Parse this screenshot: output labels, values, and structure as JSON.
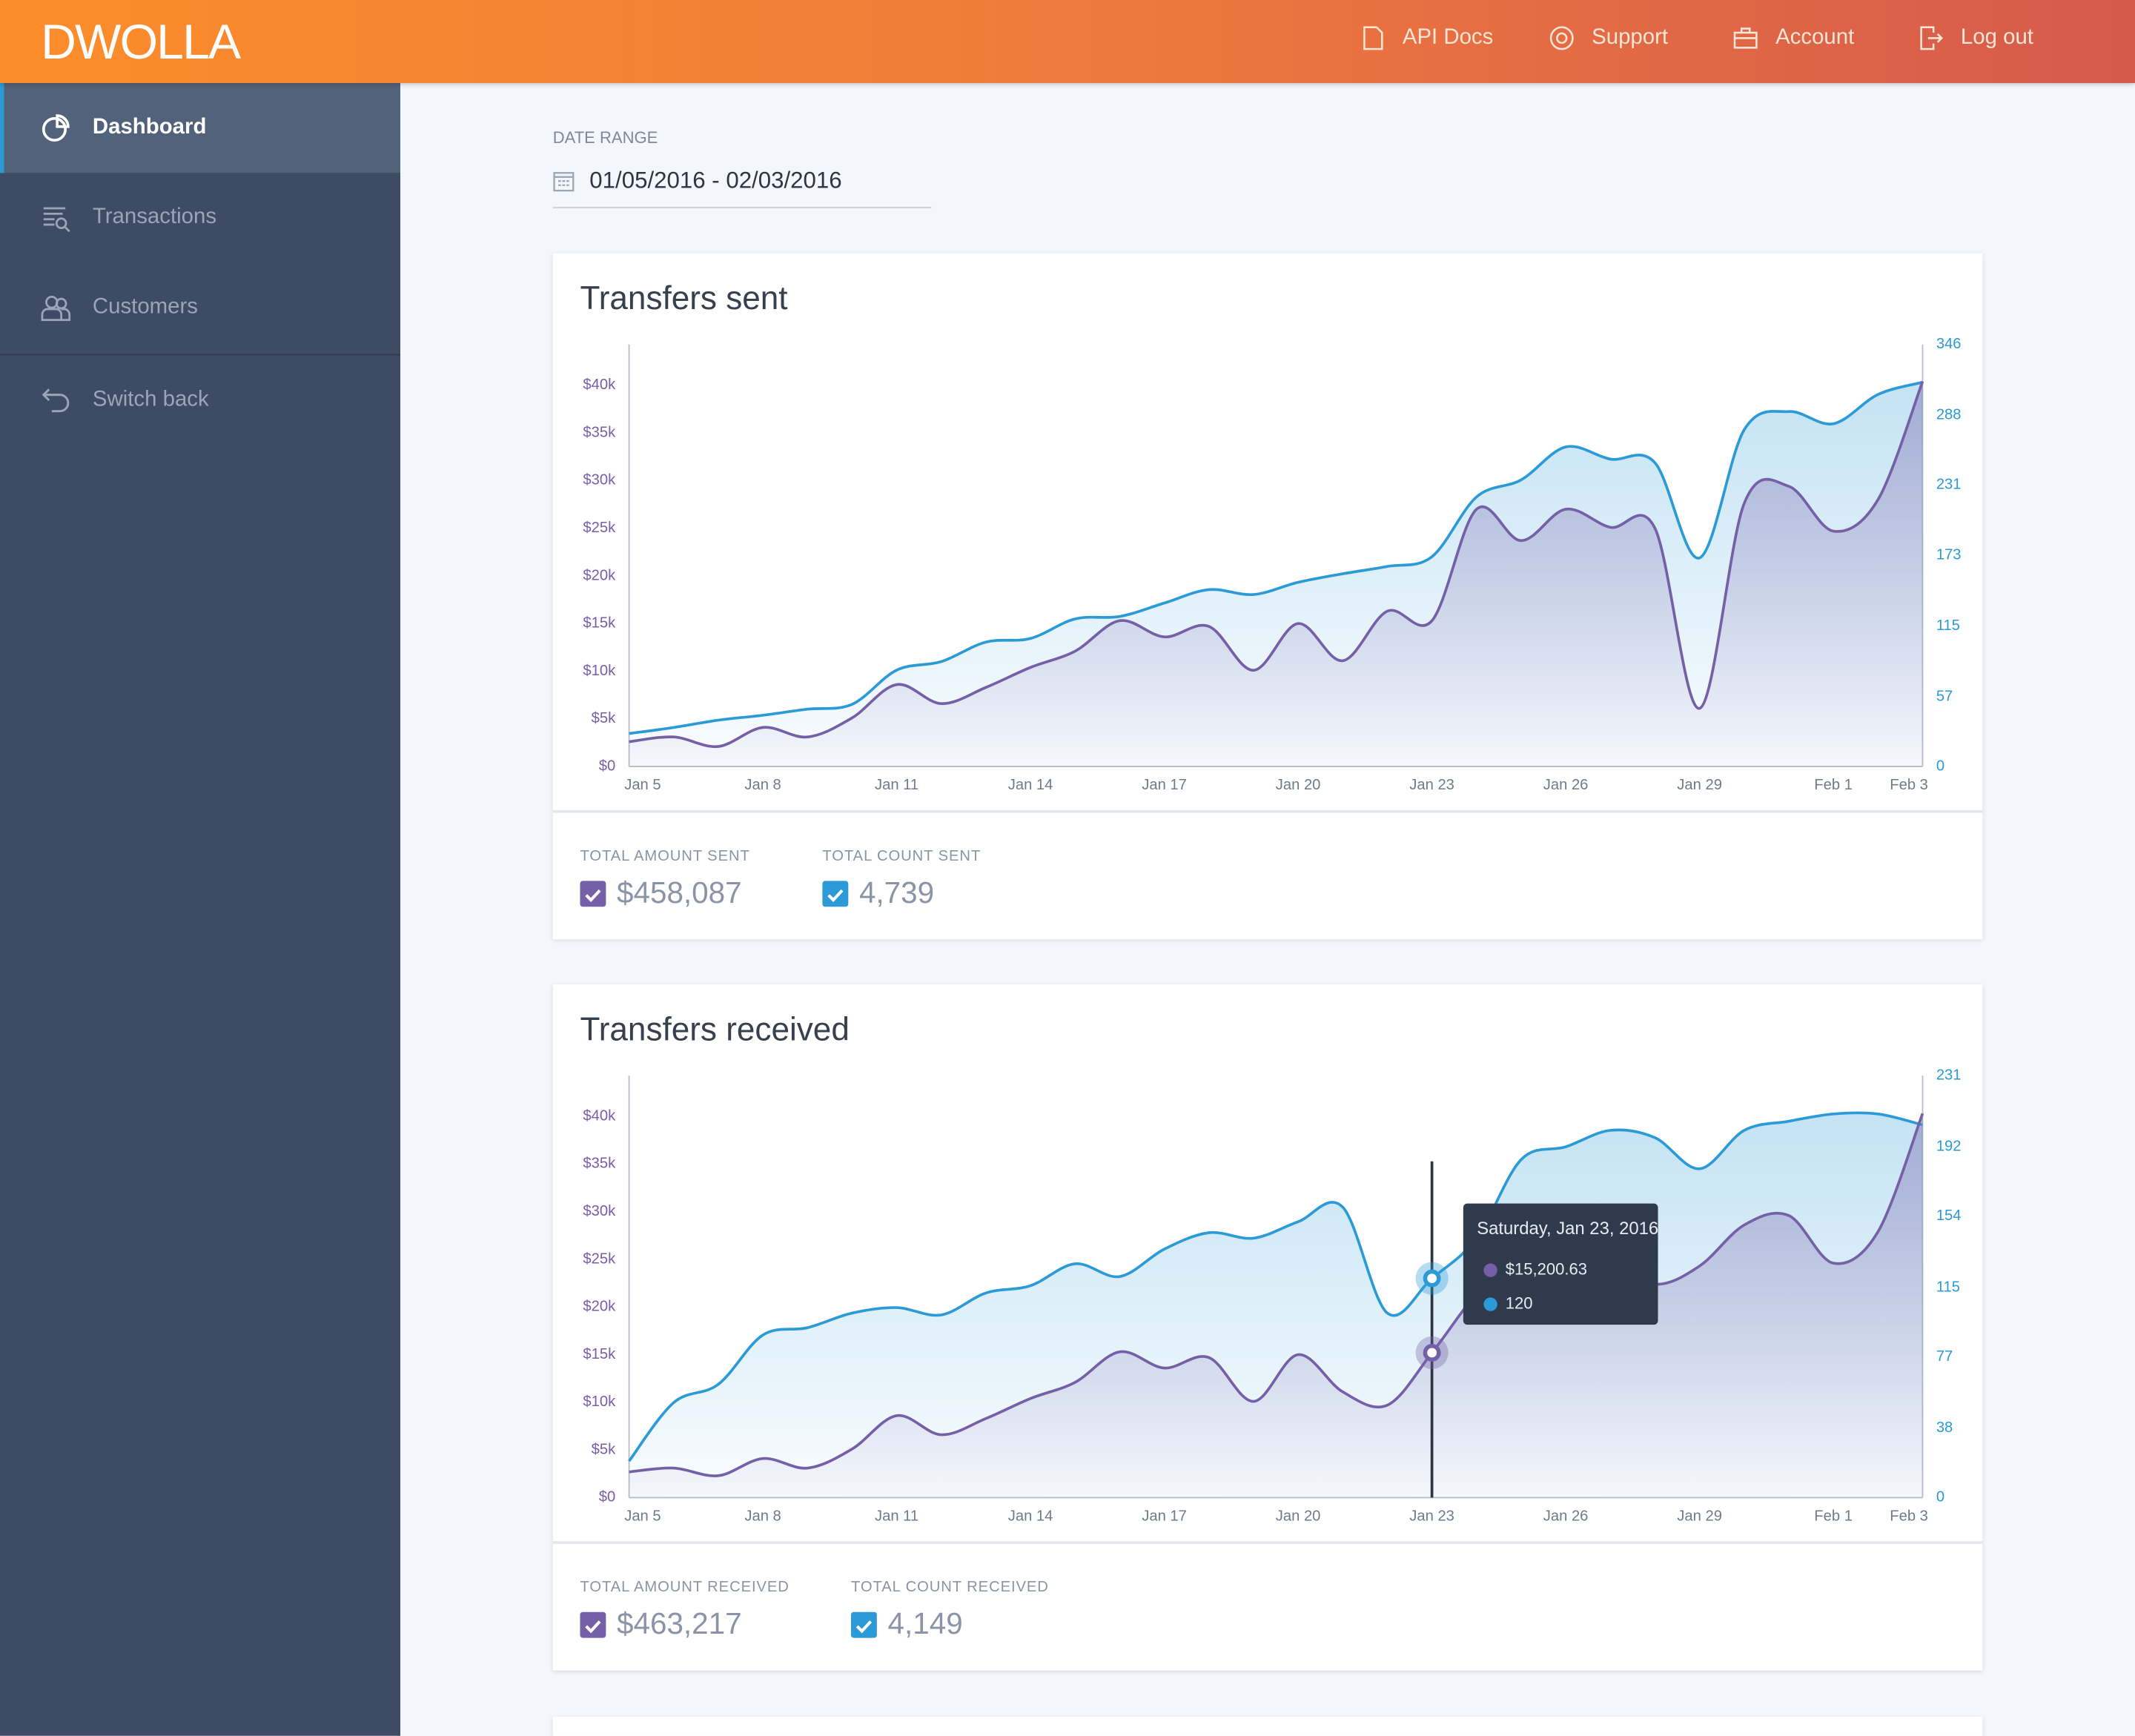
{
  "header": {
    "logo": "DWOLLA",
    "nav": [
      "API Docs",
      "Support",
      "Account",
      "Log out"
    ]
  },
  "sidebar": {
    "items": [
      "Dashboard",
      "Transactions",
      "Customers",
      "Switch back"
    ]
  },
  "date_range": {
    "label": "DATE RANGE",
    "value": "01/05/2016 - 02/03/2016"
  },
  "chart_data": [
    {
      "type": "line",
      "title": "Transfers sent",
      "categories": [
        "Jan 5",
        null,
        null,
        "Jan 8",
        null,
        null,
        "Jan 11",
        null,
        null,
        "Jan 14",
        null,
        null,
        "Jan 17",
        null,
        null,
        "Jan 20",
        null,
        null,
        "Jan 23",
        null,
        null,
        "Jan 26",
        null,
        null,
        "Jan 29",
        null,
        null,
        "Feb 1",
        null,
        "Feb 3"
      ],
      "ylim": [
        0,
        44286
      ],
      "yticks": [
        {
          "value": 0,
          "label": "$0"
        },
        {
          "value": 5000,
          "label": "$5k"
        },
        {
          "value": 10000,
          "label": "$10k"
        },
        {
          "value": 15000,
          "label": "$15k"
        },
        {
          "value": 20000,
          "label": "$20k"
        },
        {
          "value": 25000,
          "label": "$25k"
        },
        {
          "value": 30000,
          "label": "$30k"
        },
        {
          "value": 35000,
          "label": "$35k"
        },
        {
          "value": 40000,
          "label": "$40k"
        }
      ],
      "y2lim": [
        0,
        346
      ],
      "y2ticks": [
        0,
        57,
        115,
        173,
        231,
        288,
        346
      ],
      "series": [
        {
          "name": "TOTAL AMOUNT SENT",
          "total": "$458,087",
          "color": "#7560a8",
          "values": [
            2600,
            3100,
            2100,
            4100,
            3100,
            5100,
            8600,
            6600,
            8300,
            10400,
            12100,
            15300,
            13600,
            14700,
            10100,
            15000,
            11100,
            16300,
            15300,
            27000,
            23700,
            27000,
            25100,
            25000,
            6100,
            27600,
            29400,
            24700,
            28000,
            40400
          ]
        },
        {
          "name": "TOTAL COUNT SENT",
          "total": "4,739",
          "color": "#2b9ad6",
          "axis": "y2",
          "values": [
            27,
            32,
            38,
            42,
            47,
            51,
            79,
            86,
            102,
            105,
            121,
            123,
            134,
            145,
            141,
            151,
            158,
            164,
            172,
            221,
            235,
            262,
            252,
            249,
            171,
            276,
            291,
            281,
            305,
            315
          ]
        }
      ]
    },
    {
      "type": "line",
      "title": "Transfers received",
      "categories": [
        "Jan 5",
        null,
        null,
        "Jan 8",
        null,
        null,
        "Jan 11",
        null,
        null,
        "Jan 14",
        null,
        null,
        "Jan 17",
        null,
        null,
        "Jan 20",
        null,
        null,
        "Jan 23",
        null,
        null,
        "Jan 26",
        null,
        null,
        "Jan 29",
        null,
        null,
        "Feb 1",
        null,
        "Feb 3"
      ],
      "ylim": [
        0,
        44286
      ],
      "yticks": [
        {
          "value": 0,
          "label": "$0"
        },
        {
          "value": 5000,
          "label": "$5k"
        },
        {
          "value": 10000,
          "label": "$10k"
        },
        {
          "value": 15000,
          "label": "$15k"
        },
        {
          "value": 20000,
          "label": "$20k"
        },
        {
          "value": 25000,
          "label": "$25k"
        },
        {
          "value": 30000,
          "label": "$30k"
        },
        {
          "value": 35000,
          "label": "$35k"
        },
        {
          "value": 40000,
          "label": "$40k"
        }
      ],
      "y2lim": [
        0,
        231
      ],
      "y2ticks": [
        0,
        38,
        77,
        115,
        154,
        192,
        231
      ],
      "series": [
        {
          "name": "TOTAL AMOUNT RECEIVED",
          "total": "$463,217",
          "color": "#7560a8",
          "values": [
            2700,
            3100,
            2300,
            4100,
            3100,
            5100,
            8600,
            6600,
            8300,
            10400,
            12100,
            15300,
            13600,
            14700,
            10100,
            15000,
            11100,
            9700,
            15200.63,
            21400,
            25700,
            28100,
            25000,
            22400,
            24300,
            28600,
            29600,
            24600,
            27900,
            40300
          ]
        },
        {
          "name": "TOTAL COUNT RECEIVED",
          "total": "4,149",
          "color": "#2b9ad6",
          "axis": "y2",
          "values": [
            20,
            52,
            62,
            89,
            93,
            101,
            104,
            100,
            112,
            116,
            128,
            121,
            136,
            145,
            142,
            151,
            159,
            101,
            120,
            142,
            185,
            192,
            201,
            197,
            180,
            201,
            206,
            210,
            210,
            204
          ]
        }
      ],
      "tooltip": {
        "title": "Saturday, Jan 23, 2016",
        "lines": [
          "$15,200.63",
          "120"
        ]
      }
    }
  ]
}
